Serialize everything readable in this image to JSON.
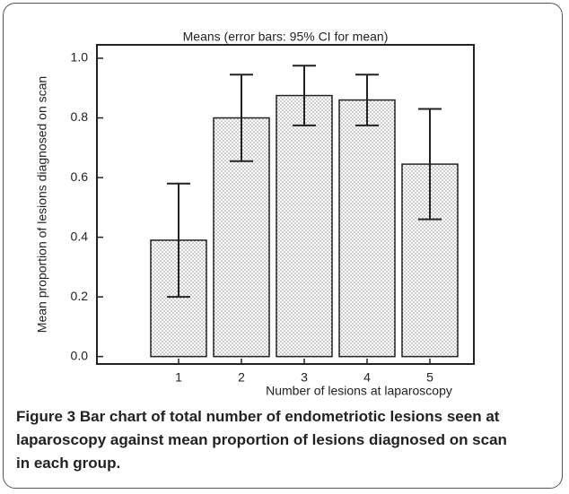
{
  "chart_data": {
    "type": "bar",
    "title": "Means  (error bars: 95% CI for mean)",
    "x_label": "Number of lesions at laparoscopy",
    "y_label": "Mean proportion of lesions diagnosed on scan",
    "categories": [
      "1",
      "2",
      "3",
      "4",
      "5"
    ],
    "values": [
      0.39,
      0.8,
      0.875,
      0.86,
      0.645
    ],
    "errors": [
      0.19,
      0.145,
      0.1,
      0.085,
      0.185
    ],
    "ylim": [
      -0.025,
      1.045
    ],
    "yticks": [
      {
        "value": 0,
        "label": "0.0"
      },
      {
        "value": 0.2,
        "label": "0.2"
      },
      {
        "value": 0.4,
        "label": "0.4"
      },
      {
        "value": 0.6,
        "label": "0.6"
      },
      {
        "value": 0.8,
        "label": "0.8"
      },
      {
        "value": 1,
        "label": "1.0"
      }
    ],
    "color": "#ffffff",
    "caption_label": "Figure 3",
    "caption_text": "Bar chart of total number of endometriotic lesions seen at laparoscopy against mean proportion of lesions diagnosed on scan in each group."
  }
}
